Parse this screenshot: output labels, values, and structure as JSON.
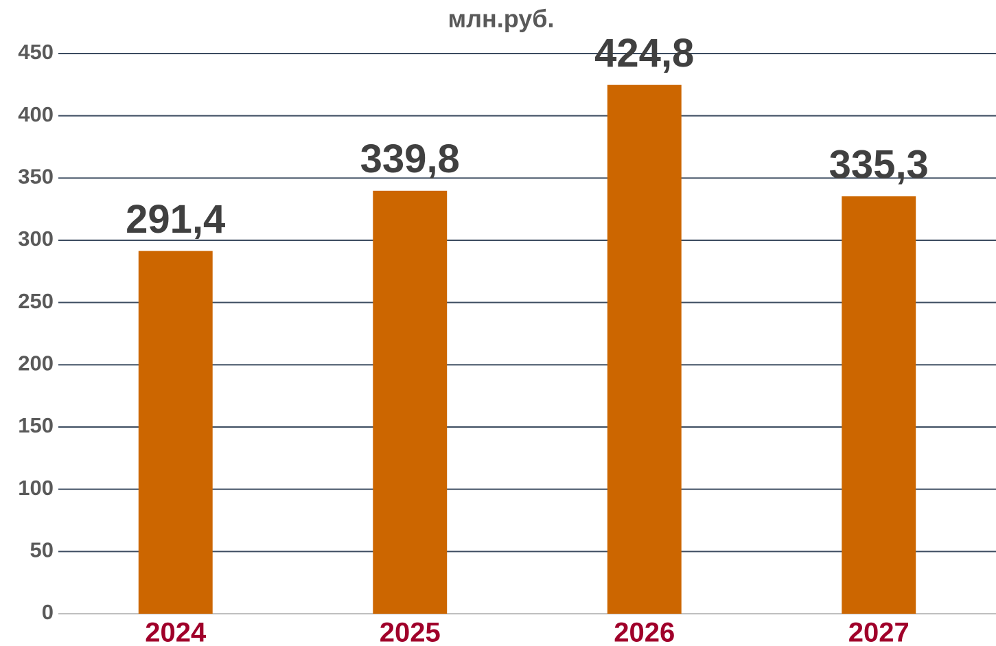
{
  "chart_data": {
    "type": "bar",
    "title": "млн.руб.",
    "categories": [
      "2024",
      "2025",
      "2026",
      "2027"
    ],
    "values": [
      291.4,
      339.8,
      424.8,
      335.3
    ],
    "value_labels": [
      "291,4",
      "339,8",
      "424,8",
      "335,3"
    ],
    "color": "#cc6600",
    "ylim": [
      0,
      450
    ],
    "yticks": [
      0,
      50,
      100,
      150,
      200,
      250,
      300,
      350,
      400,
      450
    ],
    "grid": true
  }
}
